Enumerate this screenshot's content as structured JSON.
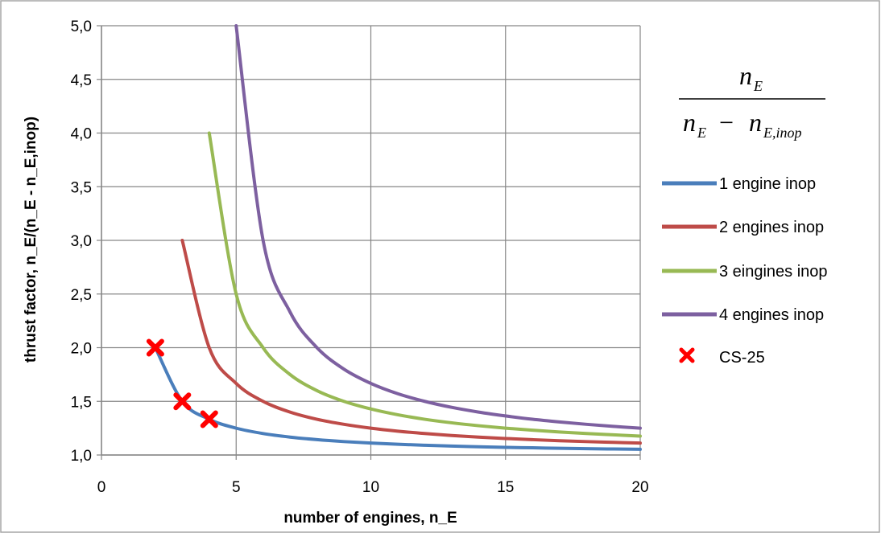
{
  "chart_data": {
    "type": "line",
    "title": "",
    "xlabel": "number of engines, n_E",
    "ylabel": "thrust factor, n_E/(n_E - n_E,inop)",
    "xlim": [
      0,
      20
    ],
    "ylim": [
      1.0,
      5.0
    ],
    "x_ticks": [
      "0",
      "5",
      "10",
      "15",
      "20"
    ],
    "y_ticks": [
      "1,0",
      "1,5",
      "2,0",
      "2,5",
      "3,0",
      "3,5",
      "4,0",
      "4,5",
      "5,0"
    ],
    "grid": true,
    "legend_position": "right",
    "series": [
      {
        "name": "1 engine inop",
        "color": "#4a7ebb",
        "x": [
          2,
          3,
          4,
          5,
          6,
          7,
          8,
          9,
          10,
          11,
          12,
          13,
          14,
          15,
          16,
          17,
          18,
          19,
          20
        ],
        "y": [
          2.0,
          1.5,
          1.333,
          1.25,
          1.2,
          1.167,
          1.143,
          1.125,
          1.111,
          1.1,
          1.091,
          1.083,
          1.077,
          1.071,
          1.067,
          1.0625,
          1.059,
          1.056,
          1.053
        ]
      },
      {
        "name": "2 engines inop",
        "color": "#be4b48",
        "x": [
          3,
          4,
          5,
          6,
          7,
          8,
          9,
          10,
          11,
          12,
          13,
          14,
          15,
          16,
          17,
          18,
          19,
          20
        ],
        "y": [
          3.0,
          2.0,
          1.667,
          1.5,
          1.4,
          1.333,
          1.286,
          1.25,
          1.222,
          1.2,
          1.182,
          1.167,
          1.154,
          1.143,
          1.133,
          1.125,
          1.118,
          1.111
        ]
      },
      {
        "name": "3 eingines inop",
        "color": "#98b954",
        "x": [
          4,
          5,
          6,
          7,
          8,
          9,
          10,
          11,
          12,
          13,
          14,
          15,
          16,
          17,
          18,
          19,
          20
        ],
        "y": [
          4.0,
          2.5,
          2.0,
          1.75,
          1.6,
          1.5,
          1.429,
          1.375,
          1.333,
          1.3,
          1.273,
          1.25,
          1.231,
          1.214,
          1.2,
          1.188,
          1.176
        ]
      },
      {
        "name": "4 engines inop",
        "color": "#7d60a0",
        "x": [
          5,
          6,
          7,
          8,
          9,
          10,
          11,
          12,
          13,
          14,
          15,
          16,
          17,
          18,
          19,
          20
        ],
        "y": [
          5.0,
          3.0,
          2.333,
          2.0,
          1.8,
          1.667,
          1.571,
          1.5,
          1.444,
          1.4,
          1.364,
          1.333,
          1.308,
          1.286,
          1.267,
          1.25
        ]
      }
    ],
    "markers": {
      "name": "CS-25",
      "color": "#ff0000",
      "x": [
        2,
        3,
        4
      ],
      "y": [
        2.0,
        1.5,
        1.333
      ]
    },
    "formula": {
      "numerator": "n",
      "numerator_sub": "E",
      "denominator": "n",
      "denominator_sub": "E",
      "minus": "−",
      "denominator_n2": "n",
      "denominator_sub2": "E,inop"
    }
  }
}
